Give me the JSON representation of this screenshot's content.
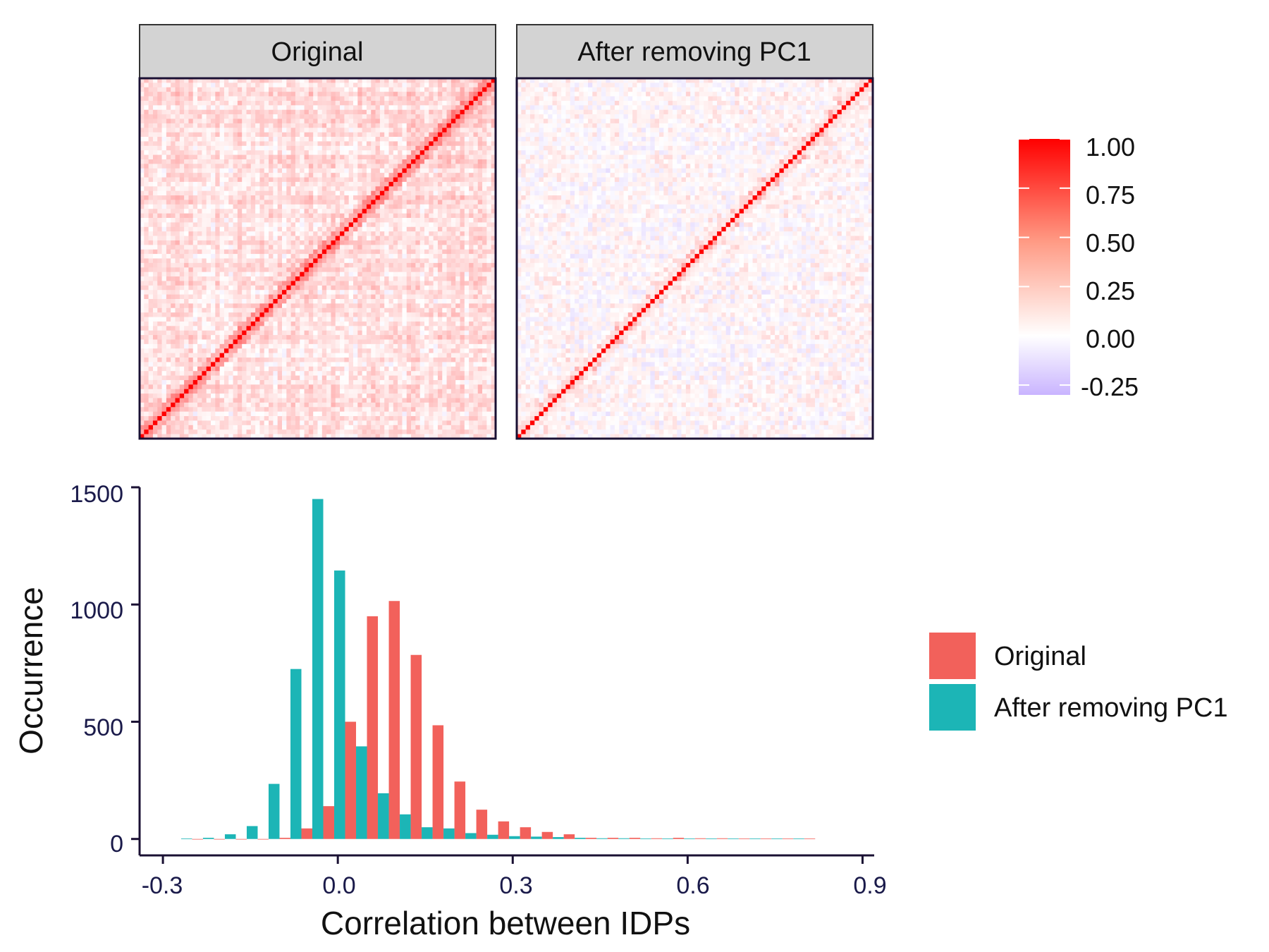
{
  "colors": {
    "original": "#F2615B",
    "after": "#1CB5B6",
    "strip_fill": "#D3D3D3",
    "axis": "#1A1033",
    "tick_text": "#1A1A4A",
    "heat_high": "#FF0000",
    "heat_mid": "#FFFFFF",
    "heat_low": "#C9B4FF"
  },
  "chart_data": [
    {
      "type": "heatmap",
      "panels": [
        "Original",
        "After removing PC1"
      ],
      "matrix_size": 80,
      "colorbar": {
        "range": [
          -0.3,
          1.0
        ],
        "ticks": [
          1.0,
          0.75,
          0.5,
          0.25,
          0.0,
          -0.25
        ],
        "tick_labels": [
          "1.00",
          "0.75",
          "0.50",
          "0.25",
          "0.00",
          "-0.25"
        ]
      },
      "diagonal_value": 1.0,
      "approx_mean_offdiagonal": [
        0.12,
        0.02
      ]
    },
    {
      "type": "bar",
      "xlabel": "Correlation between IDPs",
      "ylabel": "Occurrence",
      "xlim": [
        -0.34,
        0.92
      ],
      "ylim": [
        -70,
        1500
      ],
      "xticks": [
        -0.3,
        0.0,
        0.3,
        0.6,
        0.9
      ],
      "xtick_labels": [
        "-0.3",
        "0.0",
        "0.3",
        "0.6",
        "0.9"
      ],
      "yticks": [
        0,
        500,
        1000,
        1500
      ],
      "ytick_labels": [
        "0",
        "500",
        "1000",
        "1500"
      ],
      "bin_width": 0.0375,
      "x": [
        -0.25,
        -0.2125,
        -0.175,
        -0.1375,
        -0.1,
        -0.0625,
        -0.025,
        0.0125,
        0.05,
        0.0875,
        0.125,
        0.1625,
        0.2,
        0.2375,
        0.275,
        0.3125,
        0.35,
        0.3875,
        0.425,
        0.4625,
        0.5,
        0.5375,
        0.575,
        0.6125,
        0.65,
        0.6875,
        0.725,
        0.7625,
        0.8
      ],
      "series": [
        {
          "name": "Original",
          "values": [
            0,
            0,
            0,
            0,
            5,
            45,
            140,
            500,
            950,
            1015,
            785,
            485,
            245,
            125,
            75,
            50,
            30,
            20,
            5,
            5,
            5,
            3,
            5,
            3,
            3,
            2,
            2,
            2,
            2
          ]
        },
        {
          "name": "After removing PC1",
          "values": [
            2,
            5,
            20,
            55,
            235,
            725,
            1450,
            1145,
            395,
            195,
            105,
            50,
            45,
            25,
            18,
            12,
            10,
            8,
            5,
            3,
            3,
            2,
            2,
            2,
            2,
            2,
            2,
            2,
            2
          ]
        }
      ],
      "legend_position": "right"
    }
  ]
}
